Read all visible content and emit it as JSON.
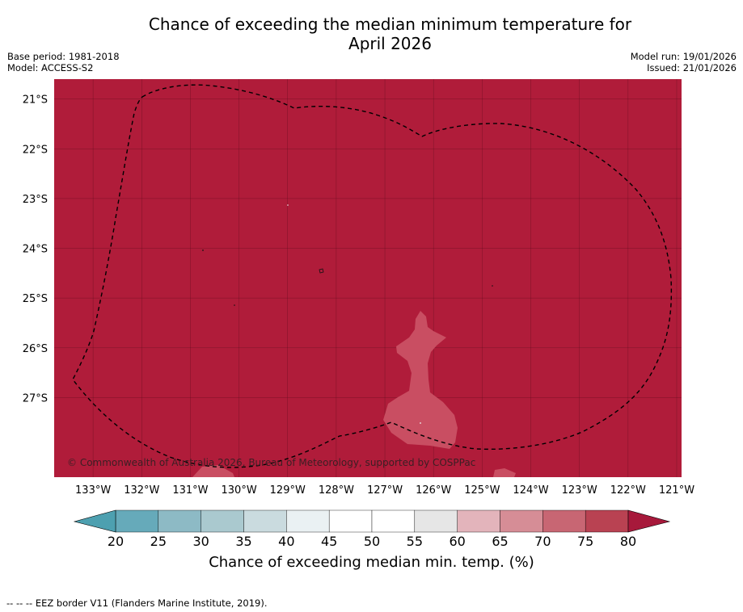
{
  "title_line1": "Chance of exceeding the median minimum temperature for",
  "title_line2": "April 2026",
  "base_period": "Base period: 1981-2018",
  "model": "Model: ACCESS-S2",
  "model_run": "Model run: 19/01/2026",
  "issued": "Issued: 21/01/2026",
  "copyright": "© Commonwealth of Australia 2026, Bureau of Meteorology, supported by COSPPac",
  "footnote": "-- -- -- EEZ border V11 (Flanders Marine Institute, 2019).",
  "map": {
    "lon_ticks": [
      "133°W",
      "132°W",
      "131°W",
      "130°W",
      "129°W",
      "128°W",
      "127°W",
      "126°W",
      "125°W",
      "124°W",
      "123°W",
      "122°W",
      "121°W"
    ],
    "lat_ticks": [
      "21°S",
      "22°S",
      "23°S",
      "24°S",
      "25°S",
      "26°S",
      "27°S"
    ],
    "lon_range": [
      -133.8,
      -120.9
    ],
    "lat_range": [
      -28.6,
      -20.6
    ],
    "fill_color": "#b01c3a",
    "anomaly_color": "#c94e62"
  },
  "colorbar": {
    "ticks": [
      "20",
      "25",
      "30",
      "35",
      "40",
      "45",
      "50",
      "55",
      "60",
      "65",
      "70",
      "75",
      "80"
    ],
    "colors": [
      "#66aaba",
      "#8dbac5",
      "#aac9cf",
      "#cadbdf",
      "#eaf1f3",
      "#ffffff",
      "#ffffff",
      "#e6e6e6",
      "#e3b4bb",
      "#d68d96",
      "#c86673",
      "#b94252"
    ],
    "under_color": "#4da0b0",
    "over_color": "#a7193b",
    "label": "Chance of exceeding median min. temp. (%)"
  }
}
